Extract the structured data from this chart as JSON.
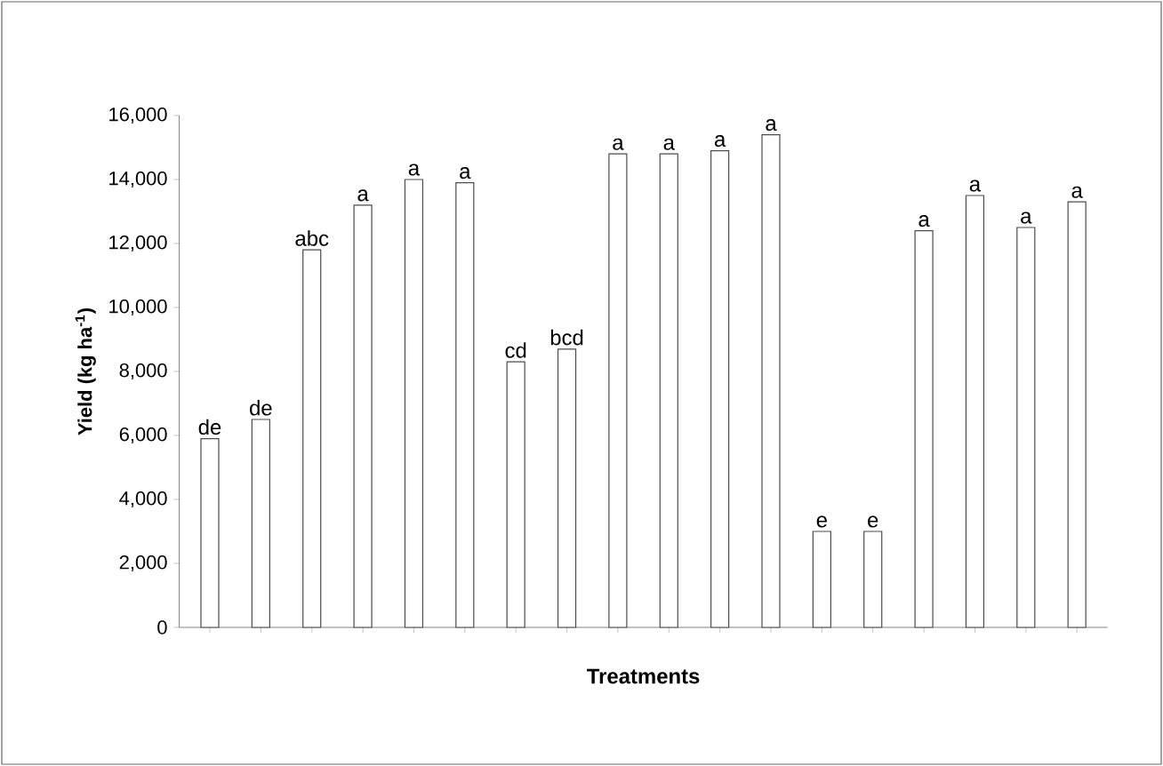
{
  "chart_data": {
    "type": "bar",
    "xlabel": "Treatments",
    "ylabel": "Yield (kg ha$^{-1}$)",
    "categories": [
      null,
      null,
      null,
      null,
      null,
      null,
      null,
      null,
      null,
      null,
      null,
      null,
      null,
      null,
      null,
      null,
      null,
      null
    ],
    "values": [
      5900,
      6500,
      11800,
      13200,
      14000,
      13900,
      8300,
      8700,
      14800,
      14800,
      14900,
      15400,
      3000,
      3000,
      12400,
      13500,
      12500,
      13300
    ],
    "value_labels": [
      "de",
      "de",
      "abc",
      "a",
      "a",
      "a",
      "cd",
      "bcd",
      "a",
      "a",
      "a",
      "a",
      "e",
      "e",
      "a",
      "a",
      "a",
      "a"
    ],
    "color": "#ffffff",
    "ylim": [
      0,
      16000
    ],
    "yticks": [
      {
        "value": 0,
        "label": "0"
      },
      {
        "value": 2000,
        "label": "2,000"
      },
      {
        "value": 4000,
        "label": "4,000"
      },
      {
        "value": 6000,
        "label": "6,000"
      },
      {
        "value": 8000,
        "label": "8,000"
      },
      {
        "value": 10000,
        "label": "10,000"
      },
      {
        "value": 12000,
        "label": "12,000"
      },
      {
        "value": 14000,
        "label": "14,000"
      },
      {
        "value": 16000,
        "label": "16,000"
      }
    ],
    "grid": false
  }
}
